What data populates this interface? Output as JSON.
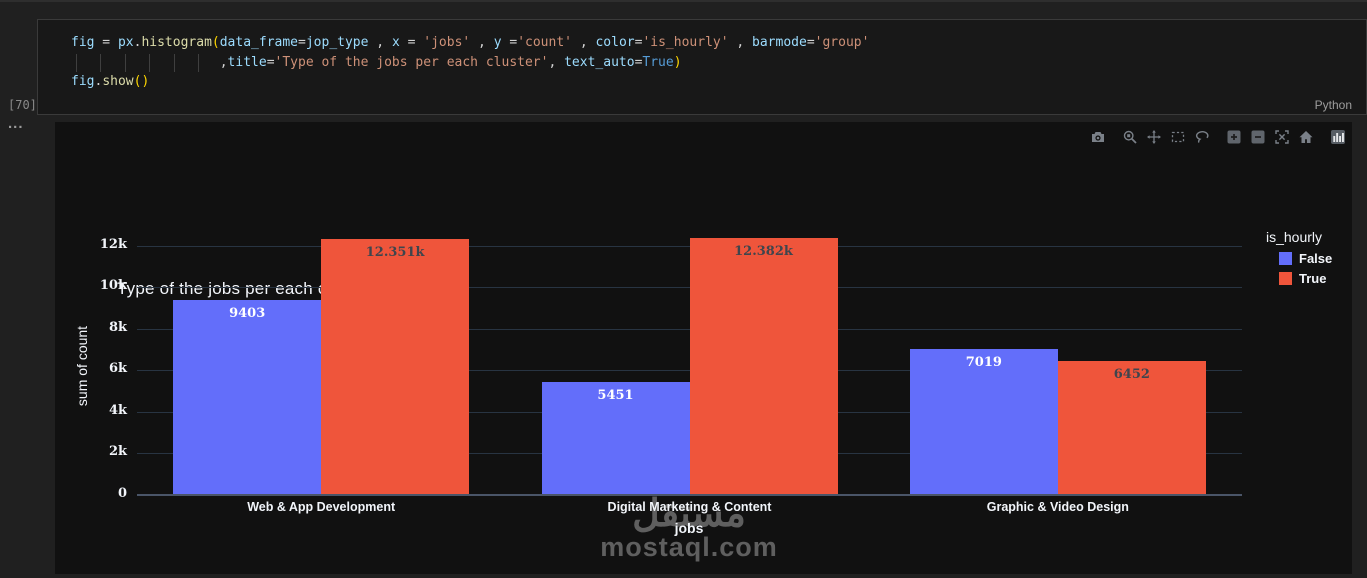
{
  "code_cell": {
    "execution_count": "[70]",
    "collapse_dots": "...",
    "language_label": "Python",
    "lines": [
      [
        [
          "var",
          "fig"
        ],
        [
          "op",
          " = "
        ],
        [
          "var",
          "px"
        ],
        [
          "op",
          "."
        ],
        [
          "fn",
          "histogram"
        ],
        [
          "br",
          "("
        ],
        [
          "var",
          "data_frame"
        ],
        [
          "op",
          "="
        ],
        [
          "var",
          "jop_type"
        ],
        [
          "op",
          " , "
        ],
        [
          "var",
          "x"
        ],
        [
          "op",
          " = "
        ],
        [
          "str",
          "'jobs'"
        ],
        [
          "op",
          " , "
        ],
        [
          "var",
          "y"
        ],
        [
          "op",
          " ="
        ],
        [
          "str",
          "'count'"
        ],
        [
          "op",
          " , "
        ],
        [
          "var",
          "color"
        ],
        [
          "op",
          "="
        ],
        [
          "str",
          "'is_hourly'"
        ],
        [
          "op",
          " , "
        ],
        [
          "var",
          "barmode"
        ],
        [
          "op",
          "="
        ],
        [
          "str",
          "'group'"
        ]
      ],
      [
        [
          "op",
          "                   "
        ],
        [
          "op",
          ","
        ],
        [
          "var",
          "title"
        ],
        [
          "op",
          "="
        ],
        [
          "str",
          "'Type of the jobs per each cluster'"
        ],
        [
          "op",
          ", "
        ],
        [
          "var",
          "text_auto"
        ],
        [
          "op",
          "="
        ],
        [
          "kw",
          "True"
        ],
        [
          "br",
          ")"
        ]
      ],
      [
        [
          "var",
          "fig"
        ],
        [
          "op",
          "."
        ],
        [
          "fn",
          "show"
        ],
        [
          "br",
          "()"
        ]
      ]
    ]
  },
  "chart": {
    "title": "Type of the jobs per each cluster",
    "modebar": [
      "camera",
      "zoom",
      "pan",
      "box-select",
      "lasso",
      "zoom-in",
      "zoom-out",
      "autoscale",
      "home",
      "plotly-logo"
    ],
    "watermark_ar": "مستقل",
    "watermark_domain": "mostaql.com"
  },
  "chart_data": {
    "type": "bar",
    "barmode": "group",
    "title": "Type of the jobs per each cluster",
    "xlabel": "jobs",
    "ylabel": "sum of count",
    "categories": [
      "Web & App Development",
      "Digital Marketing & Content",
      "Graphic & Video Design"
    ],
    "series": [
      {
        "name": "False",
        "color": "#636EFA",
        "label_color": "#ffffff",
        "values": [
          9403,
          5451,
          7019
        ],
        "labels": [
          "9403",
          "5451",
          "7019"
        ]
      },
      {
        "name": "True",
        "color": "#EF553B",
        "label_color": "#3f454d",
        "values": [
          12351,
          12382,
          6452
        ],
        "labels": [
          "12.351k",
          "12.382k",
          "6452"
        ]
      }
    ],
    "legend_title": "is_hourly",
    "yticks": [
      0,
      2000,
      4000,
      6000,
      8000,
      10000,
      12000
    ],
    "ytick_labels": [
      "0",
      "2k",
      "4k",
      "6k",
      "8k",
      "10k",
      "12k"
    ],
    "ylim": [
      0,
      12424
    ],
    "grid": "horizontal",
    "legend_position": "right"
  }
}
